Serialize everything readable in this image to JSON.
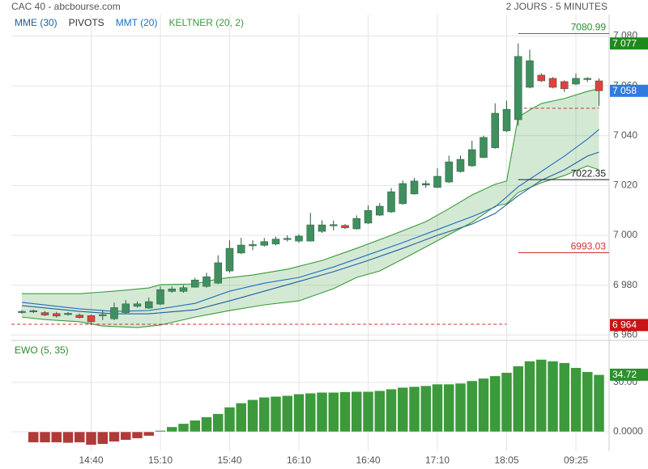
{
  "chart_data": {
    "type": "candlestick",
    "title": "CAC 40 - abcbourse.com",
    "subtitle": "2 JOURS - 5 MINUTES",
    "categories": [
      null,
      null,
      null,
      null,
      null,
      null,
      "14:40",
      null,
      null,
      null,
      null,
      null,
      "15:10",
      null,
      null,
      null,
      null,
      null,
      "15:40",
      null,
      null,
      null,
      null,
      null,
      "16:10",
      null,
      null,
      null,
      null,
      null,
      "16:40",
      null,
      null,
      null,
      null,
      null,
      "17:10",
      null,
      null,
      null,
      null,
      null,
      "18:05",
      null,
      null,
      null,
      null,
      null,
      "09:25",
      null,
      null
    ],
    "open": [
      6969,
      6969.3,
      6969,
      6968.6,
      6968.2,
      6968,
      6967.8,
      6967.8,
      6966.5,
      6969,
      6971.5,
      6970.8,
      6972.4,
      6977.5,
      6977.5,
      6979.2,
      6979.5,
      6980.8,
      6985.7,
      6992.9,
      6995.8,
      6996,
      6996.5,
      6998.3,
      6997.7,
      6997.7,
      7001.6,
      7003.8,
      7004,
      7002.6,
      7004.9,
      7008.1,
      7009.4,
      7012.7,
      7016.6,
      7020.2,
      7019.2,
      7021.4,
      7025.6,
      7027.9,
      7031.2,
      7035.1,
      7041.9,
      7046.4,
      7059.4,
      7064.3,
      7063,
      7061.7,
      7060.7,
      7062.5,
      7062
    ],
    "high": [
      6970,
      6970.2,
      6969.6,
      6969.3,
      6969.2,
      6968.6,
      6968.2,
      6970,
      6973,
      6974,
      6973.5,
      6975,
      6979.5,
      6979.5,
      6980,
      6983,
      6985,
      6992,
      6998,
      6999,
      6998,
      6999,
      6999.5,
      7000,
      7000.5,
      7009,
      7006,
      7006,
      7004.5,
      7008,
      7012,
      7013,
      7019,
      7022,
      7023,
      7022,
      7027,
      7032,
      7032,
      7038,
      7040,
      7053,
      7054,
      7077,
      7074.5,
      7065,
      7063.5,
      7062.2,
      7065,
      7063.5,
      7063
    ],
    "low": [
      6968.5,
      6968.8,
      6967.6,
      6967,
      6967.8,
      6966.6,
      6964,
      6966,
      6966,
      6968.5,
      6971,
      6970.5,
      6972,
      6977,
      6977,
      6979,
      6979,
      6980.5,
      6985,
      6992.5,
      6994,
      6995.5,
      6996,
      6997.5,
      6997,
      6997.5,
      7001,
      7002,
      7002.5,
      7002.3,
      7004.5,
      7007.8,
      7009,
      7012.3,
      7016.3,
      7019,
      7019,
      7021,
      7025.2,
      7027.5,
      7031,
      7034.8,
      7041.5,
      7044,
      7059,
      7061.5,
      7059,
      7057.5,
      7060.3,
      7061.5,
      7052
    ],
    "close": [
      6969.5,
      6969.8,
      6968,
      6967.6,
      6968.7,
      6967,
      6965.3,
      6968.2,
      6971,
      6972.5,
      6972.5,
      6973.4,
      6978.2,
      6978.5,
      6979,
      6982.1,
      6983.4,
      6989,
      6994.8,
      6996.1,
      6996.3,
      6997.5,
      6998.5,
      6998.8,
      6999.7,
      7004.2,
      7004.2,
      7004.3,
      7003,
      7006.8,
      7010,
      7011.7,
      7017.5,
      7020.8,
      7021.8,
      7020.8,
      7023.7,
      7029.5,
      7030.5,
      7034.4,
      7039.3,
      7049,
      7050.6,
      7071.8,
      7070.1,
      7062,
      7059.4,
      7058.8,
      7063,
      7063,
      7058
    ],
    "up_color": "#3f8f5f",
    "down_color": "#e2403f",
    "ylim": [
      6958.8,
      7088.6
    ],
    "yticks": [
      {
        "value": 6960,
        "label": "6 960"
      },
      {
        "value": 6980,
        "label": "6 980"
      },
      {
        "value": 7000,
        "label": "7 000"
      },
      {
        "value": 7020,
        "label": "7 020"
      },
      {
        "value": 7040,
        "label": "7 040"
      },
      {
        "value": 7060,
        "label": "7 060"
      },
      {
        "value": 7080,
        "label": "7 080"
      }
    ],
    "grid": true,
    "overlays": [
      {
        "name": "MME (30)",
        "color": "#1f5fa0",
        "x": [
          0,
          5,
          8,
          11,
          15,
          18,
          21,
          24,
          27,
          30,
          33,
          36,
          39,
          41,
          43,
          45,
          47,
          49,
          50
        ],
        "values": [
          6971.8,
          6969.5,
          6968.5,
          6968.5,
          6970.1,
          6973.7,
          6977.6,
          6981.5,
          6985.4,
          6989.9,
          6994.8,
          7000,
          7004.5,
          7008.8,
          7015.9,
          7022.1,
          7026.3,
          7031.8,
          7033.4
        ]
      },
      {
        "name": "PIVOTS",
        "color": "#333333"
      },
      {
        "name": "MMT (20)",
        "color": "#1e6fc0",
        "x": [
          0,
          5,
          8,
          11,
          15,
          18,
          21,
          24,
          27,
          30,
          33,
          36,
          39,
          41,
          43,
          45,
          47,
          49,
          50
        ],
        "values": [
          6973.1,
          6970.5,
          6969.5,
          6969.8,
          6972.7,
          6977.6,
          6980.8,
          6983.1,
          6987.3,
          6992.2,
          6997.1,
          7002.3,
          7007.5,
          7011.4,
          7019.5,
          7025.6,
          7031.8,
          7038.6,
          7042.5
        ]
      },
      {
        "name": "KELTNER (20, 2)",
        "color": "#3a9a3a",
        "upper": {
          "x": [
            0,
            5,
            8,
            11,
            12,
            15,
            17,
            20,
            23,
            26,
            29,
            32,
            35,
            37,
            39,
            41,
            42,
            43,
            44,
            45,
            47,
            49,
            50
          ],
          "values": [
            6976.6,
            6976.6,
            6977.6,
            6978.9,
            6980.2,
            6980.5,
            6982.5,
            6984.1,
            6986.4,
            6989.9,
            6994.8,
            7000,
            7005.5,
            7010.7,
            7016.2,
            7020.5,
            7021.8,
            7047.4,
            7050.3,
            7052.9,
            7054.9,
            7057.8,
            7058.8
          ]
        },
        "lower": {
          "x": [
            0,
            2,
            5,
            7,
            10,
            12,
            15,
            18,
            21,
            24,
            27,
            29,
            31,
            34,
            37,
            39,
            41,
            42,
            43,
            45,
            47,
            49,
            50
          ],
          "values": [
            6967.2,
            6966.2,
            6965.3,
            6963.6,
            6963,
            6964,
            6967.2,
            6969.8,
            6972.1,
            6973.7,
            6978.6,
            6983.1,
            6985.7,
            6992.9,
            7000.3,
            7005.2,
            7011.7,
            7012.7,
            7017.2,
            7021.1,
            7024,
            7027.9,
            7026.3
          ]
        }
      }
    ],
    "pivots": [
      {
        "value": 7080.99,
        "color": "#2e8b2e",
        "x": [
          43,
          51
        ]
      },
      {
        "value": 7022.35,
        "color": "#222222",
        "x": [
          43,
          51
        ]
      },
      {
        "value": 6993.03,
        "color": "#d03030",
        "x": [
          43,
          51
        ]
      }
    ],
    "dashed_levels": [
      {
        "value": 6964.3,
        "color": "#d03030",
        "x": [
          -0.9,
          42
        ]
      },
      {
        "value": 7051,
        "color": "#d03030",
        "x": [
          43,
          50
        ]
      }
    ],
    "price_markers": [
      {
        "value": 7077,
        "label": "7 077",
        "color": "#1e8a1e"
      },
      {
        "value": 7058,
        "label": "7 058",
        "color": "#2f7be0"
      },
      {
        "value": 6964,
        "label": "6 964",
        "color": "#c81414"
      }
    ],
    "ewo": {
      "title": "EWO (5, 35)",
      "values": [
        null,
        -6.5,
        -6.5,
        -6.5,
        -6.8,
        -6.5,
        -8,
        -7.5,
        -6,
        -5,
        -4,
        -2.5,
        0.8,
        3,
        5,
        7,
        9,
        11,
        15,
        17.5,
        19.5,
        21,
        21.5,
        22,
        23,
        23.5,
        24,
        24,
        24.3,
        24.5,
        24.5,
        25,
        26,
        27,
        27.5,
        28,
        29,
        29,
        29.5,
        31,
        32.5,
        34,
        36,
        40,
        43,
        44,
        43,
        42,
        39,
        36.5,
        34.72
      ],
      "up_color": "#3c9a3c",
      "down_color": "#b03a3a",
      "ylim": [
        -11.8,
        53.6
      ],
      "yticks": [
        {
          "value": 0,
          "label": "0.0000"
        },
        {
          "value": 30,
          "label": "30.00"
        }
      ],
      "marker": {
        "value": 34.72,
        "label": "34.72",
        "color": "#2e8f2e"
      }
    }
  }
}
